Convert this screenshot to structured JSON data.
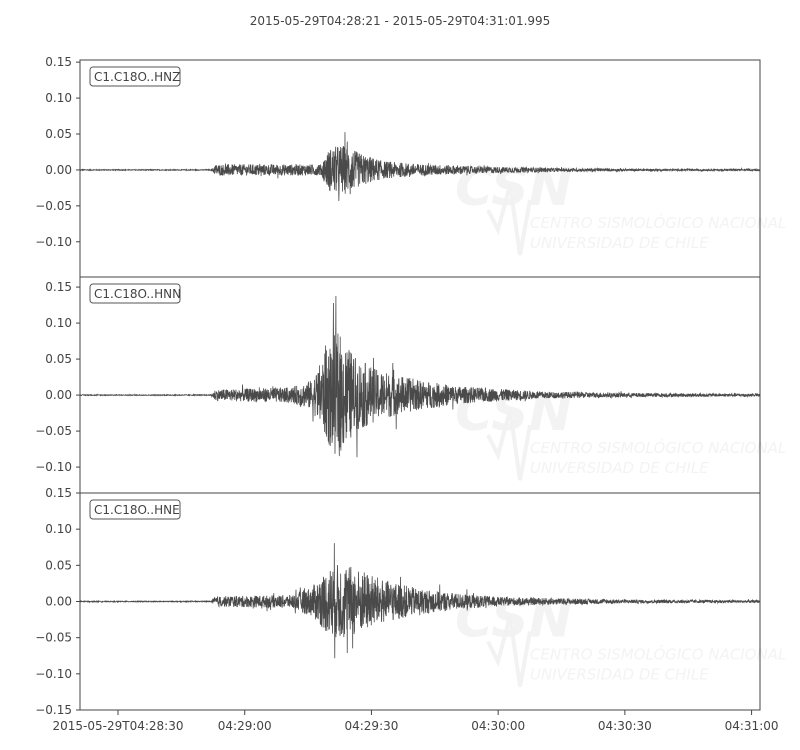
{
  "chart_data": {
    "type": "line",
    "title": "2015-05-29T04:28:21  -  2015-05-29T04:31:01.995",
    "start_time": "2015-05-29T04:28:21",
    "end_time": "2015-05-29T04:31:01.995",
    "x_tick_labels": [
      "2015-05-29T04:28:30",
      "04:29:00",
      "04:29:30",
      "04:30:00",
      "04:30:30",
      "04:31:00"
    ],
    "x_tick_seconds_after_start": [
      9,
      39,
      69,
      99,
      129,
      159
    ],
    "line_color": "#4a4a4a",
    "grid": false,
    "watermark": {
      "logo": "CSN",
      "line1": "CENTRO SISMOLÓGICO NACIONAL",
      "line2": "UNIVERSIDAD DE CHILE"
    },
    "traces": [
      {
        "name": "C1.C18O..HNZ",
        "ylim": [
          -0.149,
          0.153
        ],
        "y_ticks": [
          0.15,
          0.1,
          0.05,
          0.0,
          -0.05,
          -0.1
        ],
        "y_tick_labels": [
          "0.15",
          "0.10",
          "0.05",
          "0.00",
          "−0.05",
          "−0.10"
        ],
        "envelope_seconds": [
          0,
          31,
          32,
          57,
          59,
          62,
          66,
          72,
          80,
          95,
          115,
          140,
          161
        ],
        "envelope_amplitude": [
          0.001,
          0.001,
          0.013,
          0.013,
          0.05,
          0.06,
          0.04,
          0.02,
          0.014,
          0.008,
          0.004,
          0.002,
          0.002
        ]
      },
      {
        "name": "C1.C18O..HNN",
        "ylim": [
          -0.136,
          0.164
        ],
        "y_ticks": [
          0.15,
          0.1,
          0.05,
          0.0,
          -0.05,
          -0.1
        ],
        "y_tick_labels": [
          "0.15",
          "0.10",
          "0.05",
          "0.00",
          "−0.05",
          "−0.10"
        ],
        "envelope_seconds": [
          0,
          31,
          32,
          50,
          55,
          59,
          61,
          65,
          70,
          80,
          90,
          110,
          130,
          161
        ],
        "envelope_amplitude": [
          0.001,
          0.001,
          0.013,
          0.018,
          0.035,
          0.12,
          0.15,
          0.09,
          0.06,
          0.035,
          0.02,
          0.008,
          0.005,
          0.003
        ]
      },
      {
        "name": "C1.C18O..HNE",
        "ylim": [
          -0.15,
          0.15
        ],
        "y_ticks": [
          0.15,
          0.1,
          0.05,
          0.0,
          -0.05,
          -0.1,
          -0.15
        ],
        "y_tick_labels": [
          "0.15",
          "0.10",
          "0.05",
          "0.00",
          "−0.05",
          "−0.10",
          "−0.15"
        ],
        "envelope_seconds": [
          0,
          31,
          32,
          50,
          55,
          59,
          62,
          66,
          72,
          80,
          90,
          100,
          130,
          161
        ],
        "envelope_amplitude": [
          0.001,
          0.001,
          0.012,
          0.015,
          0.035,
          0.08,
          0.09,
          0.075,
          0.05,
          0.03,
          0.018,
          0.01,
          0.004,
          0.003
        ]
      }
    ]
  }
}
